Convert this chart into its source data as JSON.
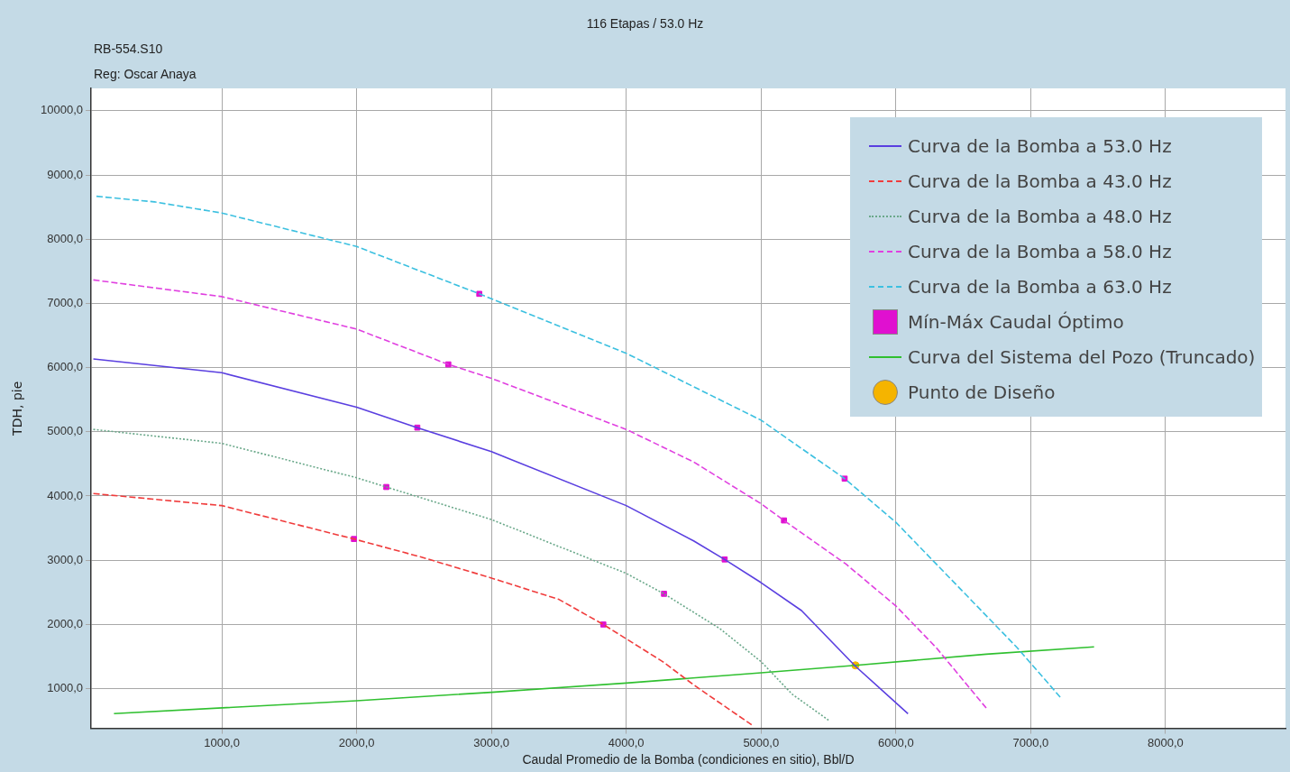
{
  "chart_data": {
    "type": "line",
    "title": "116 Etapas / 53.0 Hz",
    "subtitle": "RB-554.S10",
    "annotations": [
      "Reg: Oscar Anaya"
    ],
    "xlabel": "Caudal Promedio de la Bomba (condiciones en sitio), Bbl/D",
    "ylabel": "TDH, pie",
    "xlim": [
      30,
      8890
    ],
    "ylim": [
      380,
      10350
    ],
    "xticks": [
      {
        "value": 1000,
        "label": "1000,0"
      },
      {
        "value": 2000,
        "label": "2000,0"
      },
      {
        "value": 3000,
        "label": "3000,0"
      },
      {
        "value": 4000,
        "label": "4000,0"
      },
      {
        "value": 5000,
        "label": "5000,0"
      },
      {
        "value": 6000,
        "label": "6000,0"
      },
      {
        "value": 7000,
        "label": "7000,0"
      },
      {
        "value": 8000,
        "label": "8000,0"
      }
    ],
    "yticks": [
      {
        "value": 1000,
        "label": "1000,0"
      },
      {
        "value": 2000,
        "label": "2000,0"
      },
      {
        "value": 3000,
        "label": "3000,0"
      },
      {
        "value": 4000,
        "label": "4000,0"
      },
      {
        "value": 5000,
        "label": "5000,0"
      },
      {
        "value": 6000,
        "label": "6000,0"
      },
      {
        "value": 7000,
        "label": "7000,0"
      },
      {
        "value": 8000,
        "label": "8000,0"
      },
      {
        "value": 9000,
        "label": "9000,0"
      },
      {
        "value": 10000,
        "label": "10000,0"
      }
    ],
    "grid": true,
    "legend": "top right",
    "marker": "none",
    "series": [
      {
        "name": "Curva de la Bomba a 53.0 Hz",
        "color": "#5a3fe0",
        "line_style": "solid",
        "x": [
          47,
          1000,
          2000,
          2450,
          3000,
          4000,
          4500,
          4730,
          5000,
          5300,
          5700,
          6090
        ],
        "values": [
          6136,
          5920,
          5384,
          5065,
          4690,
          3850,
          3300,
          3011,
          2650,
          2215,
          1347,
          609
        ]
      },
      {
        "name": "Curva de la Bomba a 43.0 Hz",
        "color": "#f03c3c",
        "line_style": "dashed",
        "x": [
          47,
          1000,
          1980,
          2470,
          3000,
          3500,
          3830,
          4270,
          4500,
          4930
        ],
        "values": [
          4038,
          3850,
          3330,
          3054,
          2722,
          2389,
          1998,
          1420,
          1057,
          435
        ]
      },
      {
        "name": "Curva de la Bomba a 48.0 Hz",
        "color": "#6aa88a",
        "line_style": "dotted",
        "x": [
          47,
          1000,
          2000,
          2220,
          3000,
          4000,
          4280,
          4700,
          5000,
          5230,
          5500
        ],
        "values": [
          5037,
          4820,
          4284,
          4140,
          3633,
          2794,
          2476,
          1926,
          1420,
          913,
          508
        ]
      },
      {
        "name": "Curva de la Bomba a 58.0 Hz",
        "color": "#e040e0",
        "line_style": "dashed",
        "x": [
          47,
          1000,
          2000,
          2680,
          3000,
          4000,
          4500,
          5000,
          5170,
          5630,
          6000,
          6300,
          6670
        ],
        "values": [
          7366,
          7106,
          6600,
          6050,
          5833,
          5037,
          4530,
          3879,
          3619,
          2939,
          2287,
          1636,
          696
        ]
      },
      {
        "name": "Curva de la Bomba a 63.0 Hz",
        "color": "#3cc0e0",
        "line_style": "dashed",
        "x": [
          70,
          500,
          1000,
          2000,
          2910,
          4000,
          5000,
          5620,
          6000,
          6500,
          6900,
          7230
        ],
        "values": [
          8669,
          8582,
          8408,
          7887,
          7149,
          6223,
          5181,
          4270,
          3590,
          2505,
          1636,
          840
        ]
      },
      {
        "name": "Mín-Máx Caudal Óptimo",
        "type": "scatter",
        "marker": "square",
        "color": "#e010d0",
        "x": [
          2910,
          2680,
          2450,
          2220,
          1980,
          5620,
          5170,
          4730,
          4280,
          3830
        ],
        "values": [
          7149,
          6050,
          5065,
          4140,
          3330,
          4270,
          3619,
          3011,
          2476,
          1998
        ]
      },
      {
        "name": "Curva del Sistema del Pozo (Truncado)",
        "color": "#30c030",
        "line_style": "solid",
        "x": [
          200,
          2000,
          3000,
          4000,
          5000,
          5700,
          6670,
          7470
        ],
        "values": [
          609,
          811,
          942,
          1086,
          1245,
          1361,
          1535,
          1650
        ]
      },
      {
        "name": "Punto de Diseño",
        "type": "scatter",
        "marker": "circle",
        "color": "#f5b400",
        "x": [
          5700
        ],
        "values": [
          1361
        ]
      }
    ]
  }
}
